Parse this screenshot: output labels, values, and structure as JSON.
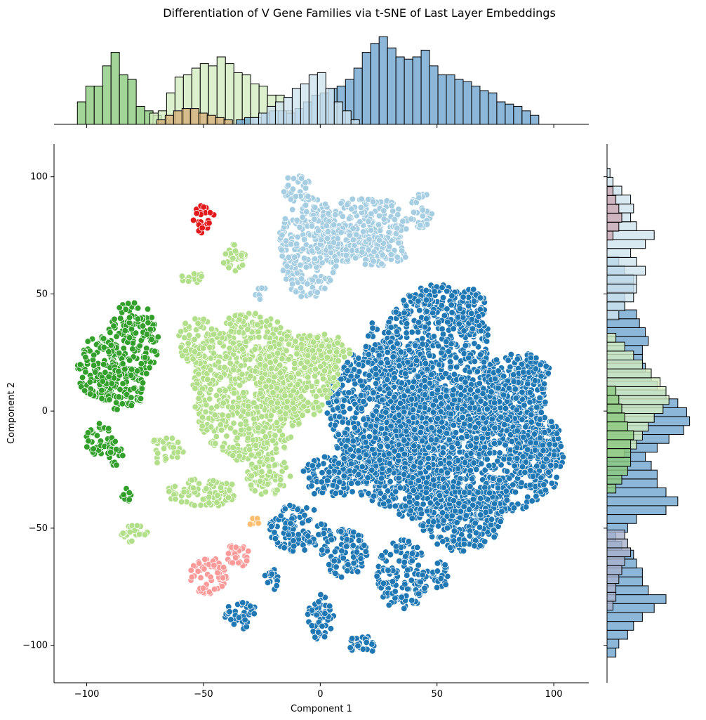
{
  "chart_data": {
    "type": "scatter",
    "title": "Differentiation of V Gene Families via t-SNE of Last Layer Embeddings",
    "xlabel": "Component 1",
    "ylabel": "Component 2",
    "xlim": [
      -114,
      115
    ],
    "ylim": [
      -116,
      114
    ],
    "xticks": [
      -100,
      -50,
      0,
      50,
      100
    ],
    "yticks": [
      -100,
      -50,
      0,
      50,
      100
    ],
    "xtick_labels": [
      "−100",
      "−50",
      "0",
      "50",
      "100"
    ],
    "ytick_labels": [
      "−100",
      "−50",
      "0",
      "50",
      "100"
    ],
    "grid": false,
    "legend": "none",
    "marginals": {
      "top": "histogram of Component 1 per cluster",
      "right": "histogram of Component 2 per cluster"
    },
    "series": [
      {
        "color": "#1f78b4",
        "marginal_color": "#6fa5cf",
        "clusters": [
          {
            "cx": 50,
            "cy": 10,
            "rx": 27,
            "ry": 44
          },
          {
            "cx": 57,
            "cy": -20,
            "rx": 48,
            "ry": 28
          },
          {
            "cx": 28,
            "cy": 0,
            "rx": 25,
            "ry": 30
          },
          {
            "cx": 75,
            "cy": 5,
            "rx": 22,
            "ry": 14
          },
          {
            "cx": 85,
            "cy": 15,
            "rx": 14,
            "ry": 10
          },
          {
            "cx": 92,
            "cy": -15,
            "rx": 12,
            "ry": 14
          },
          {
            "cx": 5,
            "cy": -28,
            "rx": 13,
            "ry": 9
          },
          {
            "cx": 60,
            "cy": -45,
            "rx": 18,
            "ry": 15
          },
          {
            "cx": 35,
            "cy": -70,
            "rx": 11,
            "ry": 15
          },
          {
            "cx": 10,
            "cy": -60,
            "rx": 10,
            "ry": 12
          },
          {
            "cx": -10,
            "cy": -50,
            "rx": 12,
            "ry": 10
          },
          {
            "cx": 0,
            "cy": -88,
            "rx": 6,
            "ry": 10
          },
          {
            "cx": 18,
            "cy": -100,
            "rx": 7,
            "ry": 4
          },
          {
            "cx": -34,
            "cy": -87,
            "rx": 7,
            "ry": 6
          },
          {
            "cx": -21,
            "cy": -72,
            "rx": 3,
            "ry": 5
          },
          {
            "cx": 65,
            "cy": 42,
            "rx": 7,
            "ry": 10
          },
          {
            "cx": 51,
            "cy": -70,
            "rx": 4,
            "ry": 6
          },
          {
            "cx": 22,
            "cy": 35,
            "rx": 3,
            "ry": 4
          }
        ]
      },
      {
        "color": "#a6cee3",
        "marginal_color": "#cfe4ef",
        "clusters": [
          {
            "cx": -5,
            "cy": 70,
            "rx": 13,
            "ry": 22
          },
          {
            "cx": 20,
            "cy": 80,
            "rx": 18,
            "ry": 12
          },
          {
            "cx": 5,
            "cy": 70,
            "rx": 10,
            "ry": 9
          },
          {
            "cx": 25,
            "cy": 68,
            "rx": 13,
            "ry": 6
          },
          {
            "cx": 43,
            "cy": 86,
            "rx": 5,
            "ry": 8
          },
          {
            "cx": -10,
            "cy": 95,
            "rx": 6,
            "ry": 6
          },
          {
            "cx": -25,
            "cy": 50,
            "rx": 3,
            "ry": 3
          }
        ]
      },
      {
        "color": "#b2df8a",
        "marginal_color": "#d4ecc0",
        "clusters": [
          {
            "cx": -30,
            "cy": 10,
            "rx": 25,
            "ry": 32
          },
          {
            "cx": -10,
            "cy": 15,
            "rx": 18,
            "ry": 18
          },
          {
            "cx": 2,
            "cy": 25,
            "rx": 11,
            "ry": 8
          },
          {
            "cx": -50,
            "cy": -35,
            "rx": 16,
            "ry": 6
          },
          {
            "cx": -66,
            "cy": -17,
            "rx": 8,
            "ry": 6
          },
          {
            "cx": -22,
            "cy": -28,
            "rx": 10,
            "ry": 8
          },
          {
            "cx": -37,
            "cy": 65,
            "rx": 5,
            "ry": 7
          },
          {
            "cx": -55,
            "cy": 57,
            "rx": 5,
            "ry": 3
          },
          {
            "cx": -80,
            "cy": -52,
            "rx": 6,
            "ry": 4
          },
          {
            "cx": -53,
            "cy": 30,
            "rx": 8,
            "ry": 10
          }
        ]
      },
      {
        "color": "#33a02c",
        "marginal_color": "#8cc97e",
        "clusters": [
          {
            "cx": -80,
            "cy": 30,
            "rx": 11,
            "ry": 17
          },
          {
            "cx": -95,
            "cy": 18,
            "rx": 9,
            "ry": 14
          },
          {
            "cx": -85,
            "cy": 10,
            "rx": 10,
            "ry": 10
          },
          {
            "cx": -95,
            "cy": -12,
            "rx": 6,
            "ry": 7
          },
          {
            "cx": -87,
            "cy": -18,
            "rx": 4,
            "ry": 6
          },
          {
            "cx": -83,
            "cy": -36,
            "rx": 2,
            "ry": 3
          }
        ]
      },
      {
        "color": "#e31a1c",
        "marginal_color": "#caa9b4",
        "clusters": [
          {
            "cx": -50,
            "cy": 82,
            "rx": 5,
            "ry": 6
          }
        ]
      },
      {
        "color": "#fb9a99",
        "marginal_color": "#a9b2cc",
        "clusters": [
          {
            "cx": -48,
            "cy": -70,
            "rx": 8,
            "ry": 8
          },
          {
            "cx": -36,
            "cy": -62,
            "rx": 6,
            "ry": 5
          }
        ]
      },
      {
        "color": "#fdbf6f",
        "marginal_color": "#d4b07a",
        "clusters": [
          {
            "cx": -28,
            "cy": -47,
            "rx": 3,
            "ry": 2
          }
        ]
      }
    ],
    "marginal_top": [
      {
        "color": "#8cc97e",
        "x0": -104,
        "width": 3.6,
        "counts": [
          10,
          17,
          17,
          26,
          32,
          22,
          20,
          8,
          6,
          4,
          2,
          0,
          0,
          0,
          0,
          0,
          0,
          0,
          0,
          0
        ]
      },
      {
        "color": "#d4ecc0",
        "x0": -73,
        "width": 3.6,
        "counts": [
          5,
          6,
          14,
          21,
          22,
          25,
          27,
          26,
          30,
          27,
          23,
          22,
          18,
          17,
          13,
          13,
          6,
          0,
          0,
          0
        ]
      },
      {
        "color": "#6fa5cf",
        "x0": -36,
        "width": 3.6,
        "counts": [
          2,
          3,
          3,
          5,
          6,
          6,
          5,
          7,
          10,
          13,
          14,
          16,
          17,
          20,
          25,
          32,
          36,
          39,
          34,
          30,
          29,
          30,
          33,
          26,
          22,
          22,
          20,
          19,
          17,
          15,
          14,
          10,
          9,
          8,
          6,
          4
        ]
      },
      {
        "color": "#cfe4ef",
        "x0": -30,
        "width": 3.6,
        "counts": [
          3,
          5,
          8,
          10,
          12,
          16,
          18,
          22,
          23,
          16,
          10,
          6,
          2
        ]
      },
      {
        "color": "#d4b07a",
        "x0": -70,
        "width": 3.6,
        "counts": [
          2,
          4,
          6,
          7,
          7,
          5,
          4,
          3,
          2
        ]
      }
    ],
    "marginal_right": [
      {
        "color": "#6fa5cf",
        "y0": -105,
        "height": 3.8,
        "counts": [
          3,
          4,
          7,
          9,
          12,
          16,
          20,
          14,
          12,
          12,
          10,
          9,
          5,
          3,
          7,
          10,
          20,
          24,
          20,
          17,
          17,
          15,
          13,
          17,
          21,
          26,
          28,
          27,
          24,
          20,
          17,
          15,
          13,
          12,
          12,
          14,
          13,
          11,
          10,
          6,
          6,
          9,
          9,
          6,
          4
        ]
      },
      {
        "color": "#cfe4ef",
        "y0": 39,
        "height": 3.8,
        "counts": [
          4,
          6,
          9,
          10,
          10,
          13,
          10,
          8,
          13,
          16,
          10,
          8,
          9,
          8,
          5,
          2,
          1
        ]
      },
      {
        "color": "#d4ecc0",
        "y0": -20,
        "height": 3.8,
        "counts": [
          6,
          10,
          12,
          14,
          16,
          19,
          21,
          20,
          18,
          15,
          12,
          9,
          6,
          3
        ]
      },
      {
        "color": "#8cc97e",
        "y0": -35,
        "height": 3.8,
        "counts": [
          3,
          5,
          7,
          8,
          8,
          8,
          9,
          7,
          6,
          5,
          4,
          3
        ]
      },
      {
        "color": "#caa9b4",
        "y0": 73,
        "height": 3.8,
        "counts": [
          2,
          4,
          5,
          4,
          3,
          2
        ]
      },
      {
        "color": "#a9b2cc",
        "y0": -85,
        "height": 3.8,
        "counts": [
          2,
          3,
          3,
          4,
          5,
          6,
          8,
          7,
          6
        ]
      }
    ]
  }
}
